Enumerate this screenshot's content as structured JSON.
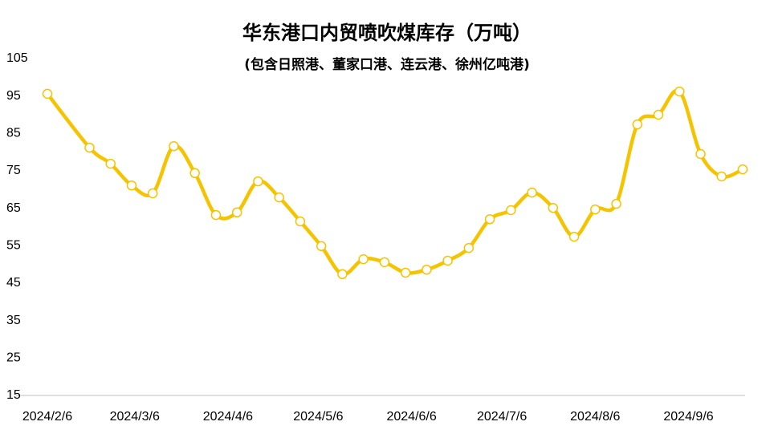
{
  "chart_data": {
    "type": "line",
    "title": "华东港口内贸喷吹煤库存（万吨）",
    "subtitle": "(包含日照港、董家口港、连云港、徐州亿吨港)",
    "x": [
      "2024/2/6",
      "2024/2/20",
      "2024/2/27",
      "2024/3/5",
      "2024/3/12",
      "2024/3/19",
      "2024/3/26",
      "2024/4/2",
      "2024/4/9",
      "2024/4/16",
      "2024/4/23",
      "2024/4/30",
      "2024/5/7",
      "2024/5/14",
      "2024/5/21",
      "2024/5/28",
      "2024/6/4",
      "2024/6/11",
      "2024/6/18",
      "2024/6/25",
      "2024/7/2",
      "2024/7/9",
      "2024/7/16",
      "2024/7/23",
      "2024/7/30",
      "2024/8/6",
      "2024/8/13",
      "2024/8/20",
      "2024/8/27",
      "2024/9/3",
      "2024/9/10",
      "2024/9/17",
      "2024/9/24"
    ],
    "series": [
      {
        "name": "喷吹煤库存",
        "color": "#f5c400",
        "values": [
          95.6,
          81.2,
          76.9,
          71.1,
          69.0,
          81.6,
          74.4,
          63.2,
          63.9,
          72.2,
          67.9,
          61.5,
          54.9,
          47.4,
          51.4,
          50.6,
          47.8,
          48.6,
          51.0,
          54.4,
          62.1,
          64.5,
          69.2,
          65.1,
          57.4,
          64.7,
          66.2,
          87.4,
          90.0,
          96.2,
          79.5,
          73.5,
          75.4
        ]
      }
    ],
    "xlim": [
      "2024/2/6",
      "2024/9/24"
    ],
    "xticks": [
      "2024/2/6",
      "2024/3/6",
      "2024/4/6",
      "2024/5/6",
      "2024/6/6",
      "2024/7/6",
      "2024/8/6",
      "2024/9/6"
    ],
    "ylim": [
      15,
      105
    ],
    "yticks": [
      15,
      25,
      35,
      45,
      55,
      65,
      75,
      85,
      95,
      105
    ],
    "grid": false,
    "smooth": true
  }
}
